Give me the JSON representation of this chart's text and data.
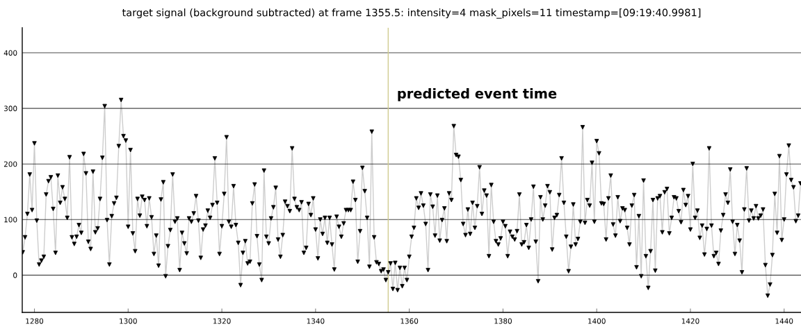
{
  "chart_data": {
    "type": "line",
    "title": "target signal (background subtracted) at frame 1355.5: intensity=4 mask_pixels=11 timestamp=[09:19:40.9981]",
    "x": [
      1277.5,
      1278,
      1278.5,
      1279,
      1279.5,
      1280,
      1280.5,
      1281,
      1281.5,
      1282,
      1282.5,
      1283,
      1283.5,
      1284,
      1284.5,
      1285,
      1285.5,
      1286,
      1286.5,
      1287,
      1287.5,
      1288,
      1288.5,
      1289,
      1289.5,
      1290,
      1290.5,
      1291,
      1291.5,
      1292,
      1292.5,
      1293,
      1293.5,
      1294,
      1294.5,
      1295,
      1295.5,
      1296,
      1296.5,
      1297,
      1297.5,
      1298,
      1298.5,
      1299,
      1299.5,
      1300,
      1300.5,
      1301,
      1301.5,
      1302,
      1302.5,
      1303,
      1303.5,
      1304,
      1304.5,
      1305,
      1305.5,
      1306,
      1306.5,
      1307,
      1307.5,
      1308,
      1308.5,
      1309,
      1309.5,
      1310,
      1310.5,
      1311,
      1311.5,
      1312,
      1312.5,
      1313,
      1313.5,
      1314,
      1314.5,
      1315,
      1315.5,
      1316,
      1316.5,
      1317,
      1317.5,
      1318,
      1318.5,
      1319,
      1319.5,
      1320,
      1320.5,
      1321,
      1321.5,
      1322,
      1322.5,
      1323,
      1323.5,
      1324,
      1324.5,
      1325,
      1325.5,
      1326,
      1326.5,
      1327,
      1327.5,
      1328,
      1328.5,
      1329,
      1329.5,
      1330,
      1330.5,
      1331,
      1331.5,
      1332,
      1332.5,
      1333,
      1333.5,
      1334,
      1334.5,
      1335,
      1335.5,
      1336,
      1336.5,
      1337,
      1337.5,
      1338,
      1338.5,
      1339,
      1339.5,
      1340,
      1340.5,
      1341,
      1341.5,
      1342,
      1342.5,
      1343,
      1343.5,
      1344,
      1344.5,
      1345,
      1345.5,
      1346,
      1346.5,
      1347,
      1347.5,
      1348,
      1348.5,
      1349,
      1349.5,
      1350,
      1350.5,
      1351,
      1351.5,
      1352,
      1352.5,
      1353,
      1353.5,
      1354,
      1354.5,
      1355,
      1355.5,
      1356,
      1356.5,
      1357,
      1357.5,
      1358,
      1358.5,
      1359,
      1359.5,
      1360,
      1360.5,
      1361,
      1361.5,
      1362,
      1362.5,
      1363,
      1363.5,
      1364,
      1364.5,
      1365,
      1365.5,
      1366,
      1366.5,
      1367,
      1367.5,
      1368,
      1368.5,
      1369,
      1369.5,
      1370,
      1370.5,
      1371,
      1371.5,
      1372,
      1372.5,
      1373,
      1373.5,
      1374,
      1374.5,
      1375,
      1375.5,
      1376,
      1376.5,
      1377,
      1377.5,
      1378,
      1378.5,
      1379,
      1379.5,
      1380,
      1380.5,
      1381,
      1381.5,
      1382,
      1382.5,
      1383,
      1383.5,
      1384,
      1384.5,
      1385,
      1385.5,
      1386,
      1386.5,
      1387,
      1387.5,
      1388,
      1388.5,
      1389,
      1389.5,
      1390,
      1390.5,
      1391,
      1391.5,
      1392,
      1392.5,
      1393,
      1393.5,
      1394,
      1394.5,
      1395,
      1395.5,
      1396,
      1396.5,
      1397,
      1397.5,
      1398,
      1398.5,
      1399,
      1399.5,
      1400,
      1400.5,
      1401,
      1401.5,
      1402,
      1402.5,
      1403,
      1403.5,
      1404,
      1404.5,
      1405,
      1405.5,
      1406,
      1406.5,
      1407,
      1407.5,
      1408,
      1408.5,
      1409,
      1409.5,
      1410,
      1410.5,
      1411,
      1411.5,
      1412,
      1412.5,
      1413,
      1413.5,
      1414,
      1414.5,
      1415,
      1415.5,
      1416,
      1416.5,
      1417,
      1417.5,
      1418,
      1418.5,
      1419,
      1419.5,
      1420,
      1420.5,
      1421,
      1421.5,
      1422,
      1422.5,
      1423,
      1423.5,
      1424,
      1424.5,
      1425,
      1425.5,
      1426,
      1426.5,
      1427,
      1427.5,
      1428,
      1428.5,
      1429,
      1429.5,
      1430,
      1430.5,
      1431,
      1431.5,
      1432,
      1432.5,
      1433,
      1433.5,
      1434,
      1434.5,
      1435,
      1435.5,
      1436,
      1436.5,
      1437,
      1437.5,
      1438,
      1438.5,
      1439,
      1439.5,
      1440,
      1440.5,
      1441,
      1441.5,
      1442,
      1442.5,
      1443,
      1443.5
    ],
    "series": [
      {
        "color": "#000000",
        "values": [
          41,
          68,
          110,
          181,
          117,
          237,
          98,
          19,
          26,
          33,
          145,
          169,
          176,
          119,
          40,
          179,
          130,
          158,
          137,
          103,
          212,
          68,
          56,
          69,
          90,
          76,
          218,
          183,
          60,
          47,
          186,
          77,
          84,
          137,
          211,
          304,
          99,
          19,
          106,
          129,
          139,
          232,
          315,
          250,
          242,
          87,
          225,
          75,
          43,
          137,
          107,
          141,
          135,
          88,
          138,
          104,
          38,
          71,
          17,
          136,
          167,
          -2,
          52,
          81,
          181,
          96,
          102,
          9,
          76,
          57,
          39,
          102,
          96,
          111,
          142,
          98,
          31,
          82,
          89,
          116,
          103,
          126,
          210,
          130,
          38,
          88,
          146,
          248,
          96,
          87,
          160,
          90,
          58,
          -18,
          40,
          61,
          21,
          24,
          129,
          163,
          70,
          19,
          -9,
          188,
          69,
          57,
          102,
          122,
          157,
          64,
          33,
          72,
          132,
          124,
          115,
          228,
          137,
          122,
          117,
          131,
          40,
          49,
          128,
          108,
          138,
          82,
          30,
          100,
          74,
          103,
          58,
          103,
          55,
          10,
          105,
          87,
          69,
          93,
          117,
          117,
          117,
          168,
          135,
          24,
          79,
          193,
          151,
          103,
          15,
          258,
          68,
          23,
          20,
          7,
          10,
          -9,
          5,
          21,
          -25,
          22,
          -27,
          13,
          -20,
          13,
          -9,
          33,
          69,
          85,
          138,
          121,
          147,
          125,
          92,
          9,
          145,
          123,
          71,
          143,
          62,
          99,
          120,
          61,
          147,
          135,
          268,
          216,
          213,
          171,
          92,
          72,
          118,
          74,
          130,
          85,
          124,
          194,
          110,
          152,
          143,
          34,
          162,
          96,
          61,
          55,
          66,
          96,
          88,
          34,
          78,
          69,
          64,
          79,
          145,
          55,
          59,
          90,
          49,
          100,
          159,
          60,
          -11,
          140,
          100,
          125,
          160,
          149,
          46,
          103,
          108,
          144,
          210,
          130,
          69,
          7,
          51,
          127,
          55,
          65,
          96,
          266,
          94,
          135,
          125,
          202,
          96,
          241,
          219,
          129,
          128,
          64,
          138,
          179,
          91,
          71,
          140,
          97,
          120,
          117,
          85,
          55,
          125,
          144,
          14,
          106,
          -2,
          170,
          34,
          -23,
          43,
          135,
          8,
          138,
          142,
          77,
          149,
          155,
          75,
          103,
          140,
          138,
          115,
          95,
          153,
          126,
          142,
          82,
          200,
          103,
          116,
          67,
          89,
          37,
          83,
          228,
          89,
          34,
          40,
          20,
          80,
          108,
          145,
          130,
          190,
          96,
          38,
          90,
          62,
          5,
          118,
          192,
          98,
          116,
          102,
          124,
          102,
          107,
          118,
          18,
          -37,
          -17,
          36,
          146,
          76,
          214,
          63,
          100,
          181,
          233,
          171,
          158,
          97,
          107,
          165
        ]
      }
    ],
    "xlim": [
      1277.4,
      1443.6
    ],
    "xticks": [
      1280,
      1300,
      1320,
      1340,
      1360,
      1380,
      1400,
      1420,
      1440
    ],
    "ylim": [
      -67,
      445
    ],
    "yticks": [
      0,
      100,
      200,
      300,
      400
    ],
    "grid": "y",
    "marker": "triangle",
    "line_style": "solid",
    "ref_lines": [
      {
        "axis": "x",
        "value": 1355.5,
        "label": "predicted event time",
        "color": "#d0cc90"
      }
    ]
  }
}
